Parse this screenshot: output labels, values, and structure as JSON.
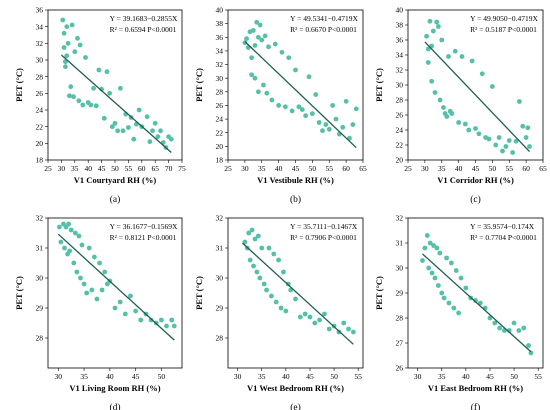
{
  "colors": {
    "point": "#55c0a8",
    "fit_line": "#1f5f4f",
    "axis": "#000000"
  },
  "chart_data": [
    {
      "type": "scatter",
      "panel_label": "(a)",
      "xlabel": "V1 Courtyard RH (%)",
      "ylabel": "PET (°C)",
      "equation": "Y = 39.1683−0.2855X",
      "r2": "R² = 0.6594   P<0.0001",
      "xlim": [
        25,
        75
      ],
      "ylim": [
        18,
        36
      ],
      "xticks": [
        25,
        30,
        35,
        40,
        45,
        50,
        55,
        60,
        65,
        70,
        75
      ],
      "yticks": [
        18,
        20,
        22,
        24,
        26,
        28,
        30,
        32,
        34,
        36
      ],
      "fit": {
        "intercept": 39.1683,
        "slope": -0.2855,
        "x_range": [
          30,
          71
        ]
      },
      "x": [
        30.5,
        31,
        31,
        31.5,
        31.5,
        32,
        32,
        32.5,
        33,
        33.5,
        34,
        34.5,
        35,
        36,
        36.5,
        37,
        38,
        39,
        40,
        41,
        42,
        43,
        44,
        45,
        46,
        47,
        48,
        49,
        50,
        51,
        52,
        53,
        54,
        55,
        56,
        57,
        58,
        59,
        60,
        62,
        63,
        64,
        65,
        66,
        67,
        68,
        69,
        70,
        71
      ],
      "y": [
        34.8,
        33.2,
        31.5,
        29.8,
        29.2,
        34.0,
        30.5,
        32.0,
        25.7,
        26.8,
        34.2,
        25.6,
        31.0,
        32.6,
        25.1,
        31.8,
        24.6,
        30.3,
        24.9,
        24.6,
        26.6,
        24.5,
        28.8,
        26.5,
        23.0,
        28.6,
        26.0,
        22.0,
        22.4,
        21.5,
        26.6,
        21.5,
        23.5,
        21.9,
        23.1,
        20.5,
        22.3,
        24.0,
        22.0,
        23.2,
        20.2,
        21.5,
        22.4,
        20.8,
        21.5,
        20.1,
        19.5,
        20.8,
        20.5
      ]
    },
    {
      "type": "scatter",
      "panel_label": "(b)",
      "xlabel": "V1 Vestibule RH (%)",
      "ylabel": "PET (°C)",
      "equation": "Y = 49.5341−0.4719X",
      "r2": "R² = 0.6670   P<0.0001",
      "xlim": [
        25,
        65
      ],
      "ylim": [
        18,
        40
      ],
      "xticks": [
        25,
        30,
        35,
        40,
        45,
        50,
        55,
        60,
        65
      ],
      "yticks": [
        18,
        20,
        22,
        24,
        26,
        28,
        30,
        32,
        34,
        36,
        38,
        40
      ],
      "fit": {
        "intercept": 49.5341,
        "slope": -0.4719,
        "x_range": [
          30,
          63
        ]
      },
      "x": [
        30,
        30.5,
        31,
        31.5,
        32,
        32,
        32.5,
        33,
        33,
        33.5,
        34,
        34,
        34.5,
        35,
        35.5,
        36,
        36.5,
        37,
        38,
        39,
        40,
        41,
        42,
        43,
        44,
        45,
        46,
        47,
        48,
        49,
        50,
        51,
        52,
        53,
        54,
        55,
        56,
        57,
        58,
        59,
        60,
        61,
        62,
        63
      ],
      "y": [
        35.2,
        35.8,
        34.5,
        36.8,
        33.0,
        30.5,
        37.0,
        34.8,
        30.0,
        38.2,
        36.0,
        28.0,
        37.8,
        35.6,
        29.0,
        36.2,
        27.8,
        34.6,
        26.8,
        35.0,
        26.0,
        33.8,
        25.8,
        33.0,
        25.2,
        31.2,
        25.8,
        25.4,
        24.5,
        30.2,
        24.8,
        27.6,
        23.5,
        22.3,
        23.2,
        22.5,
        26.0,
        24.0,
        21.8,
        22.8,
        26.6,
        21.2,
        23.2,
        25.5
      ]
    },
    {
      "type": "scatter",
      "panel_label": "(c)",
      "xlabel": "V1 Corridor RH (%)",
      "ylabel": "PET (°C)",
      "equation": "Y = 49.9050−0.4719X",
      "r2": "R² = 0.5187   P<0.0001",
      "xlim": [
        25,
        65
      ],
      "ylim": [
        20,
        40
      ],
      "xticks": [
        25,
        30,
        35,
        40,
        45,
        50,
        55,
        60,
        65
      ],
      "yticks": [
        20,
        22,
        24,
        26,
        28,
        30,
        32,
        34,
        36,
        38,
        40
      ],
      "fit": {
        "intercept": 49.905,
        "slope": -0.4719,
        "x_range": [
          30,
          61
        ]
      },
      "x": [
        30.5,
        31,
        31,
        31.5,
        32,
        32,
        32.5,
        33,
        33.5,
        34,
        34.5,
        35,
        35.5,
        36,
        36.5,
        37,
        37.5,
        38,
        39,
        40,
        41,
        42,
        43,
        44,
        45,
        46,
        47,
        48,
        49,
        50,
        51,
        52,
        53,
        54,
        55,
        56,
        57,
        58,
        59,
        60,
        60.5,
        61
      ],
      "y": [
        36.5,
        34.8,
        33.0,
        38.5,
        35.2,
        30.5,
        37.2,
        29.0,
        38.4,
        37.8,
        28.0,
        36.0,
        27.0,
        26.2,
        25.8,
        33.8,
        26.5,
        26.2,
        34.5,
        25.0,
        33.8,
        24.8,
        24.0,
        33.2,
        24.2,
        23.5,
        31.5,
        23.0,
        22.8,
        29.8,
        22.0,
        23.0,
        21.2,
        21.8,
        22.6,
        21.0,
        22.5,
        27.8,
        24.5,
        23.0,
        24.3,
        21.8
      ]
    },
    {
      "type": "scatter",
      "panel_label": "(d)",
      "xlabel": "V1 Living Room RH (%)",
      "ylabel": "PET (°C)",
      "equation": "Y = 36.1677−0.1569X",
      "r2": "R² = 0.8121   P<0.0001",
      "xlim": [
        28,
        54
      ],
      "ylim": [
        27,
        32
      ],
      "xticks": [
        30,
        35,
        40,
        45,
        50
      ],
      "yticks": [
        28,
        29,
        30,
        31,
        32
      ],
      "fit": {
        "intercept": 36.1677,
        "slope": -0.1569,
        "x_range": [
          30,
          52.5
        ]
      },
      "x": [
        30.2,
        30.5,
        31,
        31.2,
        31.5,
        31.8,
        32,
        32.2,
        32.5,
        33,
        33.3,
        33.6,
        34,
        34.3,
        34.6,
        35,
        35.5,
        36,
        36.5,
        37,
        37.5,
        38,
        38.5,
        39,
        39.5,
        40,
        41,
        42,
        43,
        44,
        45,
        46,
        47,
        48,
        49,
        50,
        51,
        52,
        52.5
      ],
      "y": [
        31.7,
        31.2,
        31.8,
        31.0,
        31.7,
        30.8,
        31.8,
        30.9,
        31.6,
        30.5,
        31.5,
        30.2,
        31.4,
        30.0,
        31.1,
        29.8,
        29.5,
        31.0,
        29.6,
        30.7,
        29.3,
        30.5,
        29.6,
        30.2,
        29.8,
        29.9,
        29.0,
        29.2,
        28.8,
        29.4,
        28.9,
        28.6,
        28.8,
        28.6,
        28.5,
        28.6,
        28.4,
        28.6,
        28.4
      ]
    },
    {
      "type": "scatter",
      "panel_label": "(e)",
      "xlabel": "V1 West Bedroom RH (%)",
      "ylabel": "PET (°C)",
      "equation": "Y = 35.7111−0.1467X",
      "r2": "R² = 0.7906   P<0.0001",
      "xlim": [
        28,
        56
      ],
      "ylim": [
        27,
        32
      ],
      "xticks": [
        30,
        35,
        40,
        45,
        50,
        55
      ],
      "yticks": [
        28,
        29,
        30,
        31,
        32
      ],
      "fit": {
        "intercept": 35.7111,
        "slope": -0.1467,
        "x_range": [
          31,
          54
        ]
      },
      "x": [
        31.5,
        32,
        32.3,
        32.6,
        33,
        33.3,
        33.6,
        34,
        34.3,
        34.6,
        35,
        35.5,
        36,
        36.5,
        37,
        37.5,
        38,
        38.5,
        39,
        39.5,
        40,
        40.5,
        41,
        42,
        43,
        44,
        45,
        46,
        47,
        48,
        49,
        50,
        51,
        52,
        53,
        54
      ],
      "y": [
        31.2,
        31.0,
        31.5,
        30.6,
        31.6,
        30.4,
        31.3,
        30.2,
        31.4,
        30.0,
        31.0,
        29.8,
        29.6,
        31.0,
        29.4,
        30.8,
        29.2,
        30.6,
        29.0,
        30.2,
        28.9,
        29.8,
        29.6,
        29.3,
        28.7,
        28.8,
        28.7,
        28.5,
        28.6,
        28.8,
        28.3,
        28.4,
        28.2,
        28.5,
        28.3,
        28.2
      ]
    },
    {
      "type": "scatter",
      "panel_label": "(f)",
      "xlabel": "V1 East Bedroom RH (%)",
      "ylabel": "PET (°C)",
      "equation": "Y = 35.9574−0.174X",
      "r2": "R² = 0.7704   P<0.0001",
      "xlim": [
        28,
        56
      ],
      "ylim": [
        26,
        32
      ],
      "xticks": [
        30,
        35,
        40,
        45,
        50,
        55
      ],
      "yticks": [
        26,
        27,
        28,
        29,
        30,
        31,
        32
      ],
      "fit": {
        "intercept": 35.9574,
        "slope": -0.174,
        "x_range": [
          31,
          53.5
        ]
      },
      "x": [
        31,
        31.5,
        32,
        32.3,
        32.6,
        33,
        33.3,
        33.6,
        34,
        34.3,
        34.6,
        35,
        35.5,
        36,
        36.5,
        37,
        37.5,
        38,
        38.5,
        39,
        40,
        41,
        42,
        43,
        44,
        45,
        46,
        47,
        48,
        49,
        50,
        51,
        52,
        53,
        53.5
      ],
      "y": [
        30.3,
        30.8,
        31.3,
        30.0,
        31.0,
        29.8,
        30.9,
        29.6,
        30.8,
        29.3,
        30.6,
        29.0,
        28.8,
        30.4,
        28.6,
        30.2,
        28.4,
        29.9,
        28.2,
        29.6,
        29.2,
        28.8,
        28.7,
        28.6,
        28.4,
        28.0,
        27.8,
        27.6,
        27.5,
        27.5,
        27.8,
        27.5,
        27.6,
        26.9,
        26.6
      ]
    }
  ]
}
